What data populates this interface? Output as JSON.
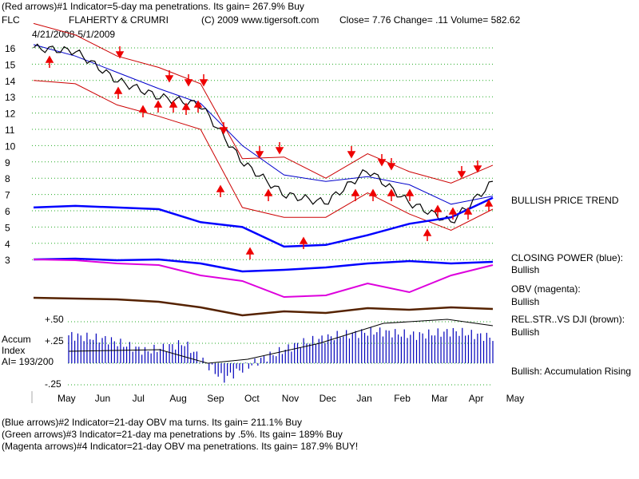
{
  "header": {
    "line1": "(Red arrows)#1 Indicator=5-day ma penetrations. Its gain= 267.9% Buy",
    "ticker": "FLC",
    "company": "FLAHERTY & CRUMRI",
    "copyright": "(C) 2009 www.tigersoft.com",
    "quote": "Close=  7.76  Change= .11 Volume= 582.62",
    "date_range": "4/21/2008-5/1/2009"
  },
  "right_labels": {
    "trend": "BULLISH PRICE TREND",
    "closing_power_title": "CLOSING POWER (blue):",
    "closing_power_status": "Bullish",
    "obv_title": "OBV (magenta):",
    "obv_status": "Bullish",
    "relstr_title": "REL.STR..VS DJI (brown):",
    "relstr_status": "Bullish",
    "accum_summary": "Bullish: Accumulation Rising"
  },
  "accum_panel": {
    "title_1": "Accum",
    "title_2": "Index",
    "ai_value": "AI= 193/200",
    "ytick_top": "+.50",
    "ytick_mid": "+.25",
    "ytick_bottom": "-.25"
  },
  "footer": {
    "line1": "(Blue arrows)#2 Indicator=21-day OBV ma turns. Its gain= 211.1% Buy",
    "line2": "(Green arrows)#3 Indicator=21-day ma penetrations by .5%. Its gain= 189% Buy",
    "line3": "(Magenta arrows)#4 Indicator=21-day OBV ma penetrations. Its gain= 187.9% BUY!"
  },
  "colors": {
    "price": "#000000",
    "band": "#cc0000",
    "ma_blue": "#0000cc",
    "closing_power": "#0000ff",
    "obv": "#dd00dd",
    "relstr": "#552200",
    "accum_bar": "#0000bb",
    "arrow": "#ee0000",
    "grid": "#22aa22"
  },
  "chart_data": {
    "type": "line",
    "y_ticks": [
      "16",
      "15",
      "14",
      "13",
      "12",
      "11",
      "10",
      "9",
      "8",
      "7",
      "6",
      "5",
      "4",
      "3"
    ],
    "ylim": [
      3,
      16.5
    ],
    "x_labels": [
      "May",
      "Jun",
      "Jul",
      "Aug",
      "Sep",
      "Oct",
      "Nov",
      "Dec",
      "Jan",
      "Feb",
      "Mar",
      "Apr",
      "May"
    ],
    "x": [
      "May",
      "Jun",
      "Jul",
      "Aug",
      "Sep",
      "Oct",
      "Nov",
      "Dec",
      "Jan",
      "Feb",
      "Mar",
      "Apr"
    ],
    "series": [
      {
        "values": [
          16.0,
          15.8,
          14.0,
          13.0,
          12.5,
          9.0,
          7.0,
          6.5,
          8.5,
          6.5,
          5.3,
          7.76
        ]
      },
      {
        "values": [
          16.2,
          15.5,
          14.5,
          13.5,
          12.6,
          10.0,
          8.2,
          7.8,
          8.1,
          7.6,
          6.4,
          6.9
        ]
      },
      {
        "values": [
          17.5,
          16.8,
          15.5,
          14.8,
          13.8,
          9.2,
          9.3,
          8.0,
          9.5,
          8.4,
          7.7,
          8.8
        ]
      },
      {
        "values": [
          14.0,
          13.8,
          12.5,
          11.8,
          11.0,
          6.2,
          5.6,
          5.6,
          7.1,
          5.8,
          4.8,
          6.1
        ]
      }
    ],
    "closing_power": [
      6.2,
      6.3,
      6.2,
      6.1,
      5.3,
      5.0,
      3.8,
      3.9,
      4.5,
      5.2,
      5.6,
      6.8
    ],
    "accum_index": [
      0.35,
      0.3,
      0.15,
      0.25,
      -0.2,
      0.05,
      0.25,
      0.35,
      0.4,
      0.35,
      0.4,
      0.32
    ],
    "grid": true
  }
}
